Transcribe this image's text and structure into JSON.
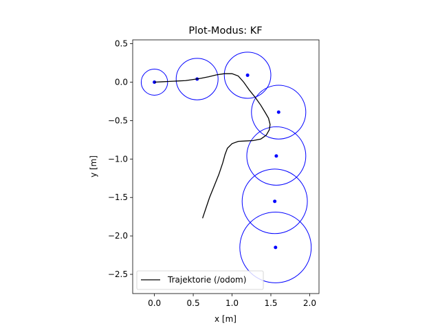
{
  "chart_data": {
    "type": "scatter",
    "title": "Plot-Modus: KF",
    "xlabel": "x [m]",
    "ylabel": "y [m]",
    "xlim": [
      -0.28,
      2.12
    ],
    "ylim": [
      -2.75,
      0.55
    ],
    "xticks": [
      0.0,
      0.5,
      1.0,
      1.5,
      2.0
    ],
    "yticks": [
      0.5,
      0.0,
      -0.5,
      -1.0,
      -1.5,
      -2.0,
      -2.5
    ],
    "xtick_labels": [
      "0.0",
      "0.5",
      "1.0",
      "1.5",
      "2.0"
    ],
    "ytick_labels": [
      "0.5",
      "0.0",
      "−0.5",
      "−1.0",
      "−1.5",
      "−2.0",
      "−2.5"
    ],
    "grid": false,
    "legend": {
      "placement": "lower-left",
      "entries": [
        "Trajektorie (/odom)"
      ]
    },
    "series": [
      {
        "name": "Trajektorie (/odom)",
        "kind": "line",
        "color": "#000000",
        "x": [
          0.0,
          0.1,
          0.2,
          0.3,
          0.4,
          0.5,
          0.6,
          0.7,
          0.8,
          0.9,
          1.0,
          1.08,
          1.15,
          1.22,
          1.3,
          1.37,
          1.43,
          1.47,
          1.49,
          1.48,
          1.44,
          1.37,
          1.27,
          1.17,
          1.08,
          1.0,
          0.94,
          0.91,
          0.88,
          0.83,
          0.77,
          0.71,
          0.66,
          0.62
        ],
        "y": [
          0.0,
          0.005,
          0.01,
          0.015,
          0.02,
          0.035,
          0.05,
          0.07,
          0.095,
          0.11,
          0.11,
          0.08,
          0.0,
          -0.1,
          -0.2,
          -0.3,
          -0.4,
          -0.47,
          -0.55,
          -0.62,
          -0.69,
          -0.74,
          -0.76,
          -0.765,
          -0.77,
          -0.8,
          -0.86,
          -0.94,
          -1.05,
          -1.2,
          -1.35,
          -1.5,
          -1.65,
          -1.77
        ]
      },
      {
        "name": "",
        "kind": "points",
        "color": "#0000ff",
        "x": [
          0.0,
          0.55,
          1.2,
          1.6,
          1.57,
          1.55,
          1.56
        ],
        "y": [
          0.0,
          0.04,
          0.09,
          -0.39,
          -0.96,
          -1.55,
          -2.15
        ],
        "radius": [
          0.17,
          0.27,
          0.3,
          0.35,
          0.38,
          0.42,
          0.46
        ]
      }
    ]
  }
}
